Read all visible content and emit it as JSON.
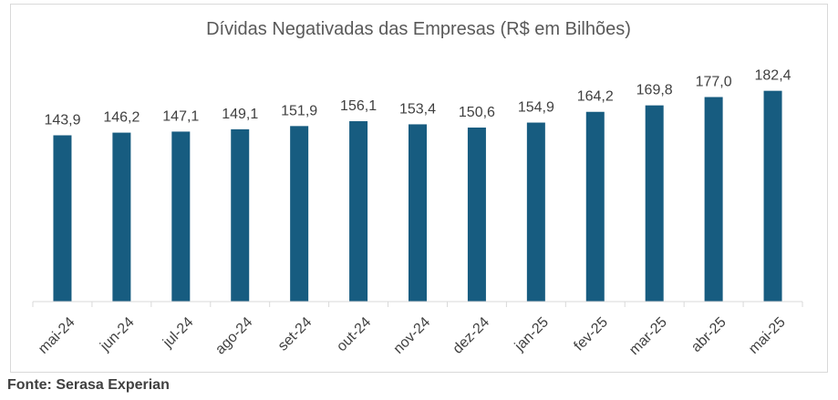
{
  "chart_data": {
    "type": "bar",
    "title": "Dívidas Negativadas das Empresas (R$ em Bilhões)",
    "categories": [
      "mai-24",
      "jun-24",
      "jul-24",
      "ago-24",
      "set-24",
      "out-24",
      "nov-24",
      "dez-24",
      "jan-25",
      "fev-25",
      "mar-25",
      "abr-25",
      "mai-25"
    ],
    "values": [
      143.9,
      146.2,
      147.1,
      149.1,
      151.9,
      156.1,
      153.4,
      150.6,
      154.9,
      164.2,
      169.8,
      177.0,
      182.4
    ],
    "value_labels": [
      "143,9",
      "146,2",
      "147,1",
      "149,1",
      "151,9",
      "156,1",
      "153,4",
      "150,6",
      "154,9",
      "164,2",
      "169,8",
      "177,0",
      "182,4"
    ],
    "xlabel": "",
    "ylabel": "",
    "ylim": [
      0,
      205
    ],
    "bar_color": "#175c80",
    "legend": "none",
    "grid": false
  },
  "source": "Fonte: Serasa Experian"
}
